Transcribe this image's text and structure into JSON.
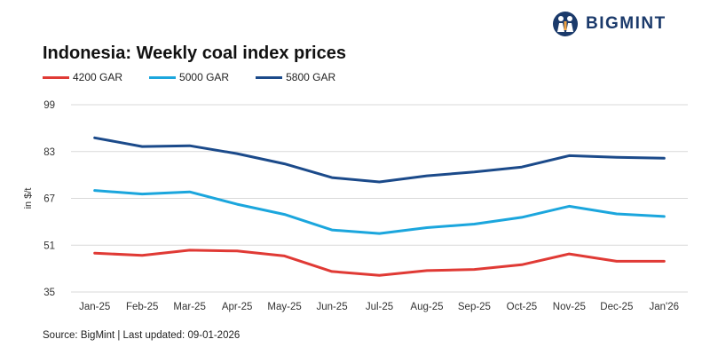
{
  "brand": {
    "name": "BIGMINT",
    "logo_icon": "bigmint-logo-icon",
    "color": "#1b3a6b"
  },
  "chart_data": {
    "type": "line",
    "title": "Indonesia: Weekly coal index prices",
    "ylabel": "in $/t",
    "xlabel": "",
    "categories": [
      "Jan-25",
      "Feb-25",
      "Mar-25",
      "Apr-25",
      "May-25",
      "Jun-25",
      "Jul-25",
      "Aug-25",
      "Sep-25",
      "Oct-25",
      "Nov-25",
      "Dec-25",
      "Jan'26"
    ],
    "yticks": [
      "35",
      "51",
      "67",
      "83",
      "99"
    ],
    "ylim": [
      35,
      99
    ],
    "grid": "horizontal",
    "legend_position": "top-left",
    "series": [
      {
        "name": "4200 GAR",
        "color": "#e03a35",
        "values": [
          48.3,
          47.5,
          49.3,
          49.0,
          47.3,
          42.0,
          40.7,
          42.3,
          42.7,
          44.3,
          48.0,
          45.5,
          45.5
        ]
      },
      {
        "name": "5000 GAR",
        "color": "#1ba6dd",
        "values": [
          69.7,
          68.5,
          69.2,
          65.0,
          61.5,
          56.2,
          55.0,
          57.0,
          58.2,
          60.5,
          64.3,
          61.7,
          60.8
        ]
      },
      {
        "name": "5800 GAR",
        "color": "#1b4a8a",
        "values": [
          87.7,
          84.7,
          85.0,
          82.3,
          78.8,
          74.1,
          72.6,
          74.7,
          76.0,
          77.7,
          81.6,
          81.0,
          80.7
        ]
      }
    ]
  },
  "source": "Source: BigMint | Last updated: 09-01-2026"
}
